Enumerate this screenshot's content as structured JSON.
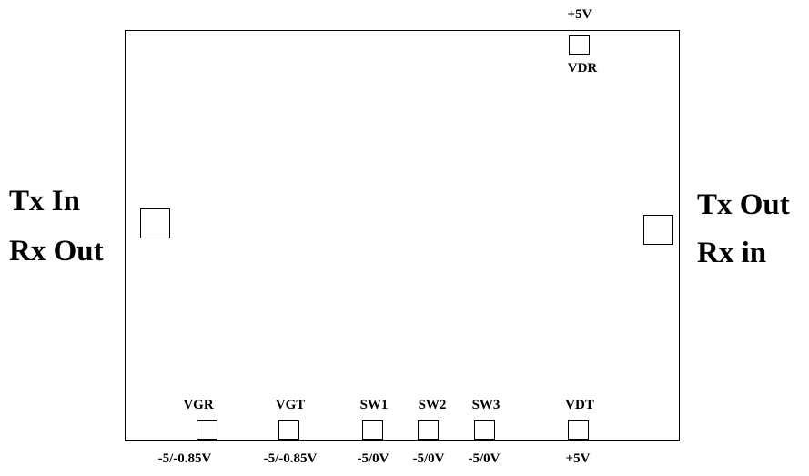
{
  "rf_ports": {
    "left_line1": "Tx In",
    "left_line2": "Rx Out",
    "right_line1": "Tx Out",
    "right_line2": "Rx in"
  },
  "top_pad": {
    "voltage": "+5V",
    "name": "VDR"
  },
  "bottom_pads": [
    {
      "name": "VGR",
      "voltage": "-5/-0.85V"
    },
    {
      "name": "VGT",
      "voltage": "-5/-0.85V"
    },
    {
      "name": "SW1",
      "voltage": "-5/0V"
    },
    {
      "name": "SW2",
      "voltage": "-5/0V"
    },
    {
      "name": "SW3",
      "voltage": "-5/0V"
    },
    {
      "name": "VDT",
      "voltage": "+5V"
    }
  ]
}
